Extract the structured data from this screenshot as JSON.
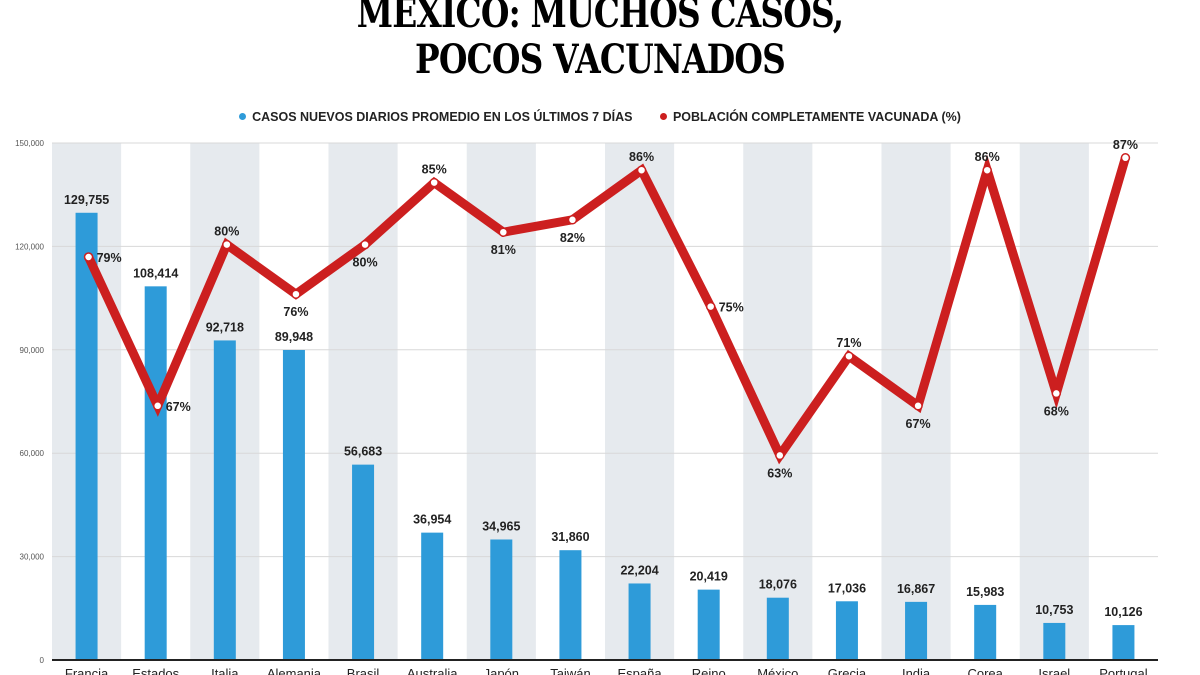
{
  "chart_data": {
    "type": "bar+line",
    "title_line1": "MEXICO: MUCHOS CASOS,",
    "title_line2": "POCOS VACUNADOS",
    "legend": [
      {
        "label": "CASOS NUEVOS DIARIOS PROMEDIO EN LOS ÚLTIMOS 7 DÍAS",
        "color": "#2e9bd9"
      },
      {
        "label": "POBLACIÓN COMPLETAMENTE VACUNADA (%)",
        "color": "#cc1f1f"
      }
    ],
    "categories": [
      "Francia",
      "Estados",
      "Italia",
      "Alemania",
      "Brasil",
      "Australia",
      "Japón",
      "Taiwán",
      "España",
      "Reino",
      "México",
      "Grecia",
      "India",
      "Corea",
      "Israel",
      "Portugal"
    ],
    "series": [
      {
        "name": "Casos nuevos diarios promedio en los últimos 7 días",
        "type": "bar",
        "values": [
          129755,
          108414,
          92718,
          89948,
          56683,
          36954,
          34965,
          31860,
          22204,
          20419,
          18076,
          17036,
          16867,
          15983,
          10753,
          10126
        ],
        "labels": [
          "129,755",
          "108,414",
          "92,718",
          "89,948",
          "56,683",
          "36,954",
          "34,965",
          "31,860",
          "22,204",
          "20,419",
          "18,076",
          "17,036",
          "16,867",
          "15,983",
          "10,753",
          "10,126"
        ]
      },
      {
        "name": "Población completamente vacunada (%)",
        "type": "line",
        "values": [
          79,
          67,
          80,
          76,
          80,
          85,
          81,
          82,
          86,
          75,
          63,
          71,
          67,
          86,
          68,
          87
        ],
        "labels": [
          "79%",
          "67%",
          "80%",
          "76%",
          "80%",
          "85%",
          "81%",
          "82%",
          "86%",
          "75%",
          "63%",
          "71%",
          "67%",
          "86%",
          "68%",
          "87%"
        ]
      }
    ],
    "yticks": [
      0,
      30000,
      60000,
      90000,
      120000,
      150000
    ],
    "ytick_labels": [
      "0",
      "30,000",
      "60,000",
      "90,000",
      "120,000",
      "150,000"
    ],
    "ylim": [
      0,
      150000
    ],
    "grid": true,
    "legend_position": "top-center"
  }
}
